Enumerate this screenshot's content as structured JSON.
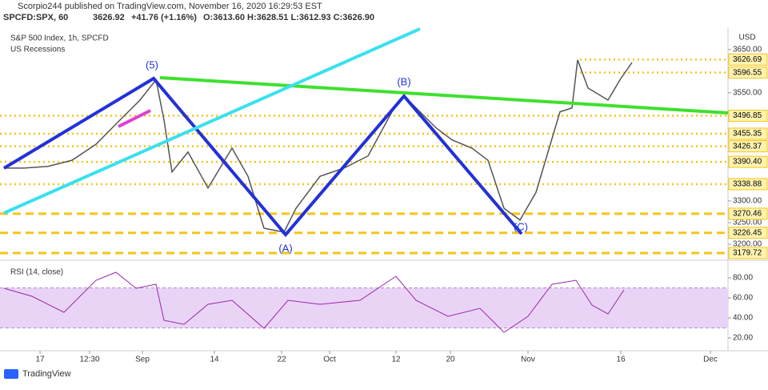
{
  "header": {
    "publisher": "Scorpio244 published on TradingView.com, November 16, 2020 16:29:53 EST",
    "symbol": "SPCFD:SPX, 60",
    "last": "3626.92",
    "change": "+41.76 (+1.16%)",
    "ohlc": "O:3613.60 H:3628.51 L:3612.93 C:3626.90",
    "currency": "USD",
    "brand": "TradingView"
  },
  "chart_data": [
    {
      "type": "line",
      "title": "S&P 500 Index, 1h, SPCFD",
      "subtitle": "US Recessions",
      "color": "#555555",
      "x": [
        0.5,
        3,
        6,
        9,
        12,
        15,
        17.5,
        19.5,
        20.5,
        21.5,
        23.5,
        26,
        29,
        31,
        33,
        35.5,
        37,
        40,
        43,
        46,
        49,
        50.5,
        52.5,
        54.5,
        56.5,
        59,
        61,
        63,
        65,
        67,
        68.5,
        70,
        71.5,
        72.2,
        73.5,
        76,
        77.5,
        79
      ],
      "values": [
        3376,
        3376,
        3380,
        3394,
        3431,
        3487,
        3533,
        3580,
        3487,
        3367,
        3413,
        3330,
        3422,
        3357,
        3237,
        3228,
        3283,
        3357,
        3376,
        3404,
        3506,
        3543,
        3506,
        3469,
        3441,
        3422,
        3394,
        3283,
        3256,
        3320,
        3413,
        3506,
        3515,
        3626,
        3561,
        3533,
        3580,
        3620
      ],
      "xlim": [
        0,
        91
      ],
      "ylim": [
        3163,
        3694
      ],
      "xticks": [
        {
          "value": 5,
          "label": "17"
        },
        {
          "value": 11.2,
          "label": "12:30"
        },
        {
          "value": 17.8,
          "label": "Sep"
        },
        {
          "value": 26.8,
          "label": "14"
        },
        {
          "value": 35.2,
          "label": "22"
        },
        {
          "value": 41.2,
          "label": "Oct"
        },
        {
          "value": 49.5,
          "label": "12"
        },
        {
          "value": 56.3,
          "label": "20"
        },
        {
          "value": 66,
          "label": "Nov"
        },
        {
          "value": 77.6,
          "label": "16"
        },
        {
          "value": 88.8,
          "label": "Dec"
        }
      ],
      "yticks": [
        {
          "value": 3650,
          "label": "3650.00"
        },
        {
          "value": 3550,
          "label": "3550.00"
        },
        {
          "value": 3300,
          "label": "3300.00"
        },
        {
          "value": 3250,
          "label": "3250.00"
        },
        {
          "value": 3200,
          "label": "3200.00"
        }
      ],
      "levels": [
        3626.69,
        3596.55,
        3496.85,
        3455.35,
        3426.37,
        {
          "value": 3390.4,
          "label": "3390.40"
        },
        3338.88,
        3270.46,
        3226.45,
        3179.72
      ],
      "level_color": "#f5c518",
      "annotations": [
        "(5)",
        "(A)",
        "(B)",
        "(C)"
      ]
    },
    {
      "type": "line",
      "title": "RSI (14, close)",
      "color": "#9c27b0",
      "x": [
        0.5,
        4,
        8,
        12,
        14.5,
        17,
        19.5,
        20.5,
        23,
        26,
        29,
        33,
        36,
        40,
        45,
        49.5,
        52,
        56,
        60,
        63,
        66,
        69,
        72,
        74,
        76,
        78
      ],
      "values": [
        69.6,
        61.6,
        45.6,
        77.6,
        85.6,
        69.6,
        73.6,
        37.6,
        33.6,
        53.6,
        57.6,
        29.6,
        57.6,
        53.6,
        57.6,
        81.6,
        57.6,
        41.6,
        49.6,
        25.6,
        41.6,
        73.6,
        77.6,
        52.8,
        44,
        68
      ],
      "xlim": [
        0,
        91
      ],
      "ylim": [
        7.2,
        97.6
      ],
      "yticks": [
        {
          "value": 80,
          "label": "80.00"
        },
        {
          "value": 60,
          "label": "60.00"
        },
        {
          "value": 40,
          "label": "40.00"
        },
        {
          "value": 20,
          "label": "20.00"
        }
      ],
      "band": [
        30,
        70
      ],
      "band_color": "#e9d4f5"
    }
  ]
}
